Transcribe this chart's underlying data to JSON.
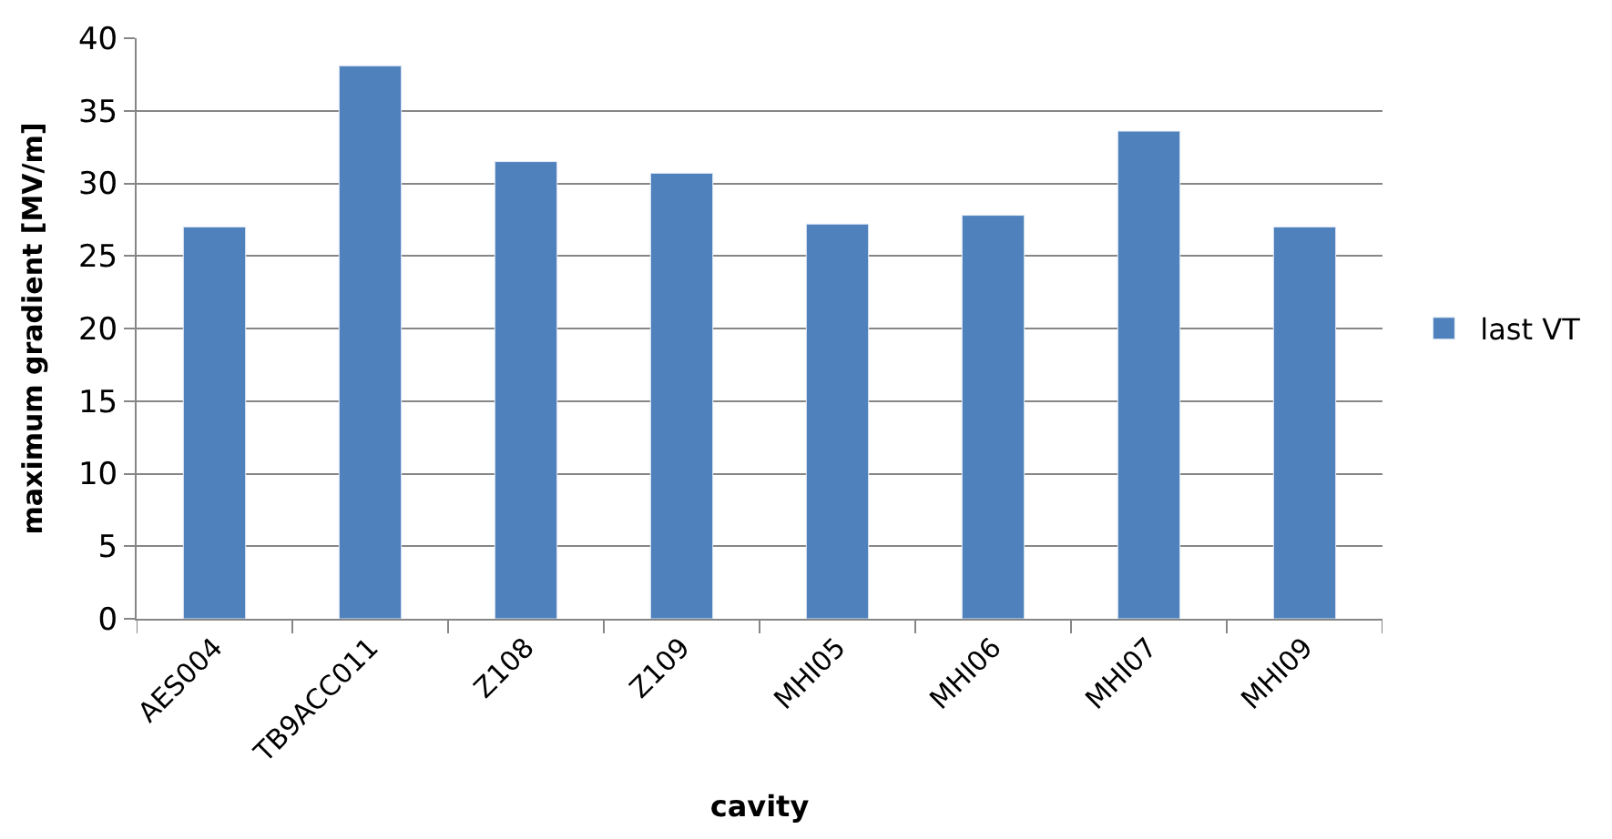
{
  "chart_data": {
    "type": "bar",
    "xlabel": "cavity",
    "ylabel": "maximum gradient [MV/m]",
    "categories": [
      "AES004",
      "TB9ACC011",
      "Z108",
      "Z109",
      "MHI05",
      "MHI06",
      "MHI07",
      "MHI09"
    ],
    "series": [
      {
        "name": "last VT",
        "color": "#4f81bd",
        "values": [
          27.0,
          38.1,
          31.5,
          30.7,
          27.2,
          27.8,
          33.6,
          27.0
        ]
      }
    ],
    "ylim": [
      0,
      40
    ],
    "yticks": [
      0,
      5,
      10,
      15,
      20,
      25,
      30,
      35,
      40
    ],
    "grid": "y",
    "legend": "right"
  }
}
